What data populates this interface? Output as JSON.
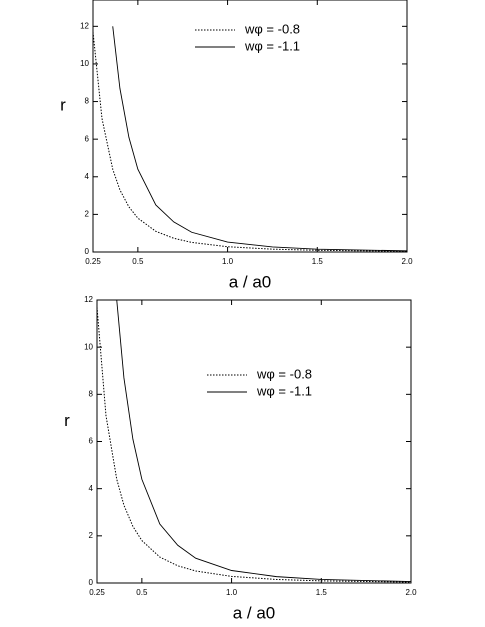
{
  "chart_data": [
    {
      "type": "line",
      "x_label": "a / a0",
      "y_label": "r",
      "x": [
        0.25,
        0.3,
        0.36,
        0.4,
        0.45,
        0.5,
        0.6,
        0.7,
        0.8,
        1.0,
        1.25,
        1.5,
        2.0
      ],
      "series": [
        {
          "name": "wφ = -0.8",
          "color": "#000000",
          "dash": "dotted",
          "values": [
            11.7,
            7.1,
            4.4,
            3.3,
            2.4,
            1.8,
            1.1,
            0.73,
            0.51,
            0.28,
            0.15,
            0.09,
            0.04
          ]
        },
        {
          "name": "wφ = -1.1",
          "color": "#000000",
          "dash": "solid",
          "values": [
            null,
            null,
            12.0,
            8.7,
            6.1,
            4.4,
            2.5,
            1.6,
            1.05,
            0.53,
            0.27,
            0.15,
            0.06
          ]
        }
      ],
      "xlim": [
        0.25,
        2.0
      ],
      "ylim": [
        0,
        13.4
      ],
      "xticks": [
        0.25,
        0.5,
        {
          "value": 1.0,
          "label": "1.0"
        },
        1.5,
        {
          "value": 2.0,
          "label": "2.0"
        }
      ],
      "yticks": [
        0,
        2,
        4,
        6,
        8,
        10,
        12
      ]
    },
    {
      "type": "line",
      "x_label": "a / a0",
      "y_label": "r",
      "x": [
        0.25,
        0.3,
        0.36,
        0.4,
        0.45,
        0.5,
        0.6,
        0.7,
        0.8,
        1.0,
        1.25,
        1.5,
        2.0
      ],
      "series": [
        {
          "name": "wφ = -0.8",
          "color": "#000000",
          "dash": "dotted",
          "values": [
            11.7,
            7.1,
            4.4,
            3.3,
            2.4,
            1.8,
            1.1,
            0.73,
            0.51,
            0.28,
            0.15,
            0.09,
            0.04
          ]
        },
        {
          "name": "wφ = -1.1",
          "color": "#000000",
          "dash": "solid",
          "values": [
            null,
            null,
            12.0,
            8.7,
            6.1,
            4.4,
            2.5,
            1.6,
            1.05,
            0.53,
            0.27,
            0.15,
            0.06
          ]
        }
      ],
      "xlim": [
        0.25,
        2.0
      ],
      "ylim": [
        0,
        12
      ],
      "xticks": [
        0.25,
        0.5,
        {
          "value": 1.0,
          "label": "1.0"
        },
        1.5,
        {
          "value": 2.0,
          "label": "2.0"
        }
      ],
      "yticks": [
        0,
        2,
        4,
        6,
        8,
        10,
        12
      ]
    }
  ]
}
